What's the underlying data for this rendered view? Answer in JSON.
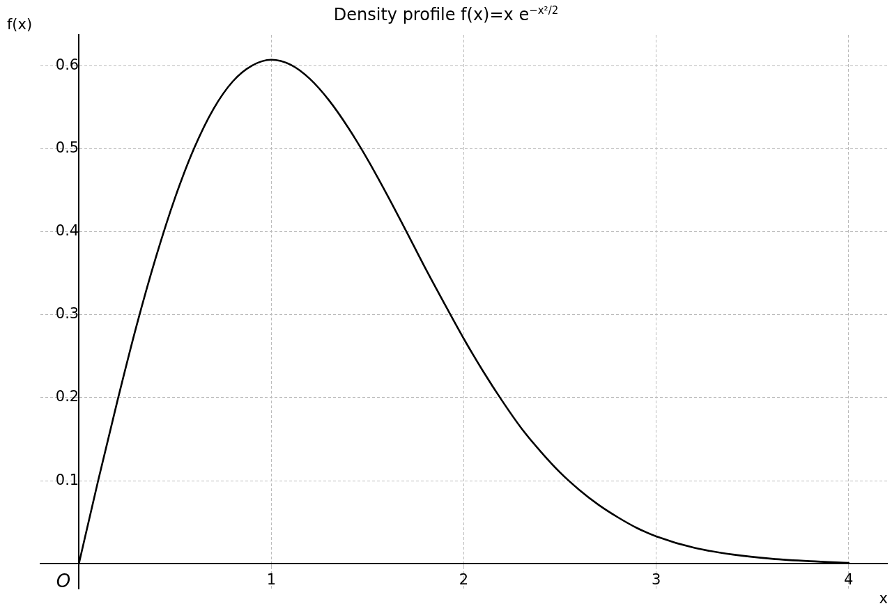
{
  "chart_data": {
    "type": "line",
    "title": "Density profile f(x)=x e$^{−x²/2}$",
    "xlabel": "x",
    "ylabel": "f(x)",
    "annotations": [
      "O"
    ],
    "series": [
      {
        "color": "#000000",
        "x": [
          0,
          0.1,
          0.2,
          0.3,
          0.4,
          0.5,
          0.6,
          0.7,
          0.8,
          0.9,
          1.0,
          1.1,
          1.2,
          1.3,
          1.4,
          1.5,
          1.6,
          1.7,
          1.8,
          1.9,
          2.0,
          2.1,
          2.2,
          2.3,
          2.4,
          2.5,
          2.6,
          2.7,
          2.8,
          2.9,
          3.0,
          3.2,
          3.4,
          3.6,
          3.8,
          4.0
        ],
        "values": [
          0,
          0.1,
          0.196,
          0.287,
          0.369,
          0.441,
          0.501,
          0.548,
          0.581,
          0.6,
          0.607,
          0.601,
          0.584,
          0.558,
          0.525,
          0.487,
          0.445,
          0.401,
          0.356,
          0.313,
          0.271,
          0.232,
          0.196,
          0.163,
          0.135,
          0.11,
          0.089,
          0.071,
          0.056,
          0.043,
          0.033,
          0.019,
          0.011,
          0.006,
          0.003,
          0.001
        ]
      }
    ],
    "xlim": [
      -0.2,
      4.2
    ],
    "ylim": [
      -0.03,
      0.637
    ],
    "xticks": [
      1,
      2,
      3,
      4
    ],
    "yticks": [
      0.1,
      0.2,
      0.3,
      0.4,
      0.5,
      0.6
    ],
    "grid": true,
    "legend": false,
    "marker": "none",
    "line_style": "solid"
  }
}
